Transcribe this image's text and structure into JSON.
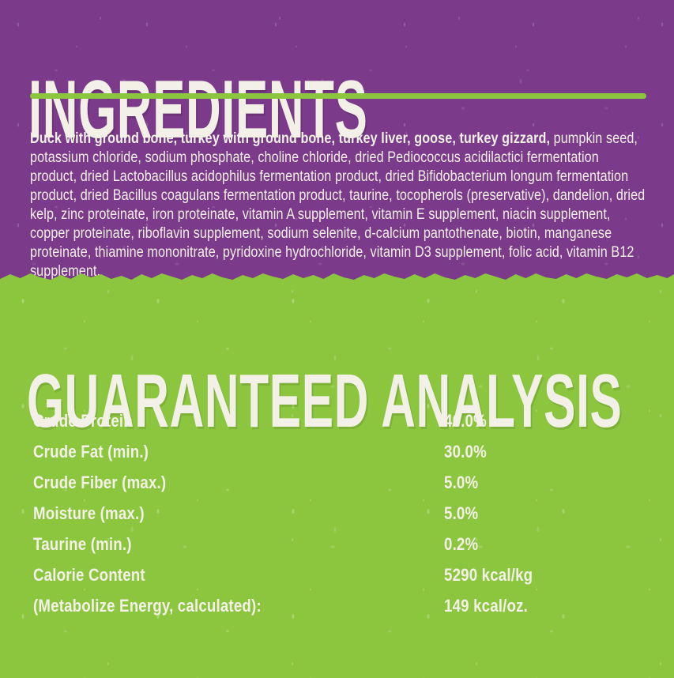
{
  "colors": {
    "purple_background": "#7b3a8a",
    "green_background": "#8cc63e",
    "text": "#f3f0e7"
  },
  "ingredients_section": {
    "title": "INGREDIENTS",
    "text_bold": "Duck with ground bone, turkey with ground bone, turkey liver, goose, turkey gizzard,",
    "text_regular": " pumpkin seed, potassium chloride, sodium phosphate, choline chloride, dried Pediococcus acidilactici fermentation product, dried Lactobacillus acidophilus fermentation product, dried Bifidobacterium longum fermentation product, dried Bacillus coagulans fermentation product, taurine, tocopherols (preservative), dandelion, dried kelp, zinc proteinate, iron proteinate, vitamin A supplement, vitamin E supplement, niacin supplement, copper proteinate, riboflavin supplement, sodium selenite, d-calcium pantothenate, biotin, manganese proteinate, thiamine mononitrate, pyridoxine hydrochloride, vitamin D3 supplement, folic acid, vitamin B12 supplement."
  },
  "analysis_section": {
    "title": "GUARANTEED ANALYSIS",
    "rows": [
      {
        "label": "Crude Protein",
        "value": "40.0%"
      },
      {
        "label": "Crude Fat (min.)",
        "value": "30.0%"
      },
      {
        "label": "Crude Fiber (max.)",
        "value": "5.0%"
      },
      {
        "label": "Moisture (max.)",
        "value": "5.0%"
      },
      {
        "label": "Taurine (min.)",
        "value": "0.2%"
      },
      {
        "label": "Calorie Content",
        "value": "5290 kcal/kg"
      },
      {
        "label": "(Metabolize Energy, calculated):",
        "value": "149 kcal/oz."
      }
    ]
  }
}
